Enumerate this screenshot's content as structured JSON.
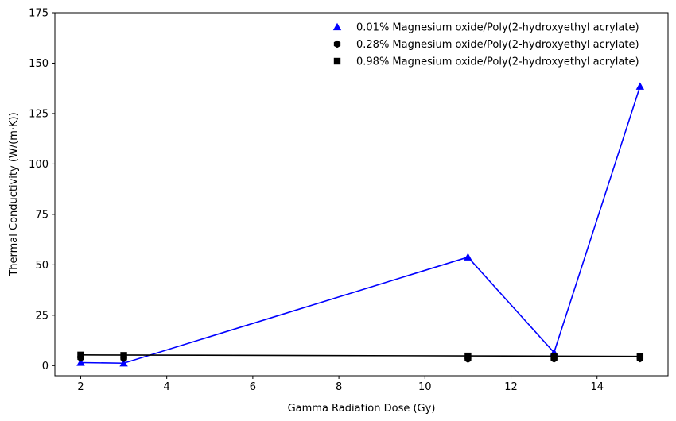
{
  "chart_data": {
    "type": "scatter",
    "title": "",
    "xlabel": "Gamma Radiation Dose (Gy)",
    "ylabel": "Thermal Conductivity (W/(m·K))",
    "xlim": [
      1.4,
      15.65
    ],
    "ylim": [
      -5,
      175
    ],
    "xticks": [
      2,
      4,
      6,
      8,
      10,
      12,
      14
    ],
    "yticks": [
      0,
      25,
      50,
      75,
      100,
      125,
      150,
      175
    ],
    "grid": false,
    "legend_position": "top-right",
    "series": [
      {
        "name": "0.01% Magnesium oxide/Poly(2-hydroxyethyl acrylate)",
        "marker": "triangle",
        "color": "#0000ff",
        "x": [
          2,
          3,
          11,
          13,
          15
        ],
        "y": [
          1.5,
          1.2,
          53.8,
          6.5,
          138.5
        ]
      },
      {
        "name": "0.28% Magnesium oxide/Poly(2-hydroxyethyl acrylate)",
        "marker": "hexagon",
        "color": "#000000",
        "x": [
          2,
          3,
          11,
          13,
          15
        ],
        "y": [
          3.9,
          3.7,
          3.3,
          3.4,
          3.5
        ]
      },
      {
        "name": "0.98% Magnesium oxide/Poly(2-hydroxyethyl acrylate)",
        "marker": "square",
        "color": "#000000",
        "x": [
          2,
          3,
          11,
          13,
          15
        ],
        "y": [
          5.3,
          5.1,
          4.8,
          4.6,
          4.7
        ]
      }
    ],
    "lines": [
      {
        "color": "#0000ff",
        "x": [
          2,
          3,
          11,
          13,
          15
        ],
        "y": [
          1.5,
          1.2,
          53.8,
          6.5,
          138.5
        ]
      },
      {
        "color": "#000000",
        "x": [
          2,
          15
        ],
        "y": [
          5.3,
          4.6
        ]
      }
    ]
  }
}
